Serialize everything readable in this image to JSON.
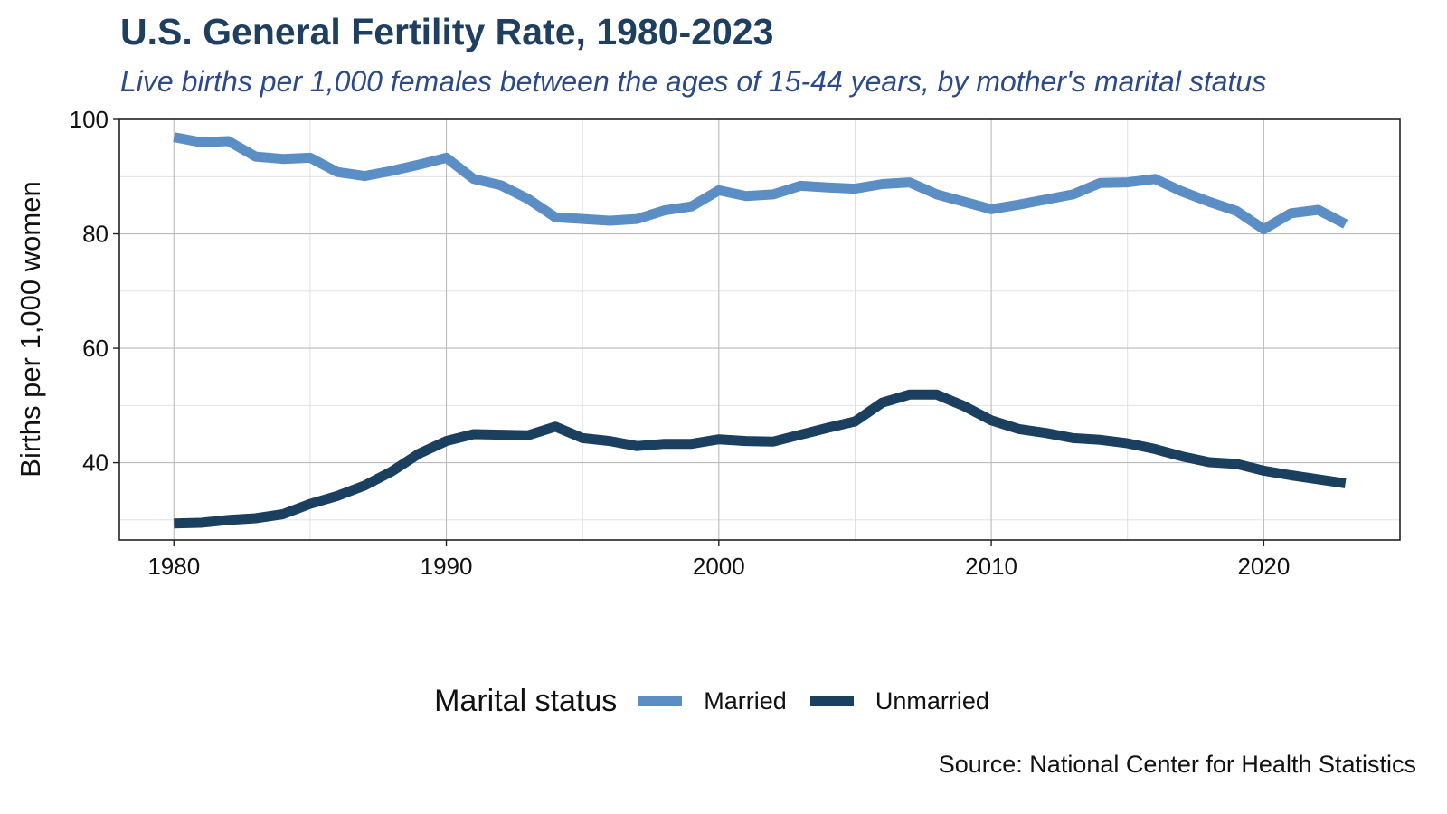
{
  "chart_data": {
    "type": "line",
    "title": "U.S. General Fertility Rate, 1980-2023",
    "subtitle": "Live births per 1,000 females between the ages of 15-44 years, by mother's marital status",
    "xlabel": "",
    "ylabel": "Births per 1,000 women",
    "xlim": [
      1978,
      2025
    ],
    "ylim": [
      26.5,
      100
    ],
    "x_ticks": [
      1980,
      1990,
      2000,
      2010,
      2020
    ],
    "y_ticks": [
      40,
      60,
      80,
      100
    ],
    "grid": true,
    "legend_position": "bottom",
    "legend_title": "Marital status",
    "source": "Source: National Center for Health Statistics",
    "x": [
      1980,
      1981,
      1982,
      1983,
      1984,
      1985,
      1986,
      1987,
      1988,
      1989,
      1990,
      1991,
      1992,
      1993,
      1994,
      1995,
      1996,
      1997,
      1998,
      1999,
      2000,
      2001,
      2002,
      2003,
      2004,
      2005,
      2006,
      2007,
      2008,
      2009,
      2010,
      2011,
      2012,
      2013,
      2014,
      2015,
      2016,
      2017,
      2018,
      2019,
      2020,
      2021,
      2022,
      2023
    ],
    "series": [
      {
        "name": "Married",
        "color": "#5b8ec5",
        "values": [
          96.9,
          96.0,
          96.2,
          93.5,
          93.1,
          93.3,
          90.8,
          90.1,
          91.0,
          92.1,
          93.3,
          89.6,
          88.5,
          86.1,
          82.9,
          82.6,
          82.3,
          82.6,
          84.1,
          84.8,
          87.6,
          86.6,
          86.9,
          88.4,
          88.1,
          87.9,
          88.7,
          89.0,
          86.9,
          85.6,
          84.3,
          85.1,
          86.0,
          86.9,
          88.9,
          89.0,
          89.6,
          87.4,
          85.6,
          84.0,
          80.8,
          83.6,
          84.2,
          81.7
        ]
      },
      {
        "name": "Unmarried",
        "color": "#1b3f5e",
        "values": [
          29.4,
          29.5,
          30.0,
          30.3,
          31.0,
          32.8,
          34.2,
          36.0,
          38.5,
          41.6,
          43.8,
          45.0,
          44.9,
          44.8,
          46.3,
          44.3,
          43.8,
          42.9,
          43.3,
          43.3,
          44.1,
          43.8,
          43.7,
          44.9,
          46.1,
          47.2,
          50.5,
          51.9,
          51.9,
          49.9,
          47.4,
          45.9,
          45.2,
          44.3,
          44.0,
          43.4,
          42.4,
          41.1,
          40.1,
          39.8,
          38.6,
          37.8,
          37.1,
          36.4
        ]
      }
    ]
  }
}
